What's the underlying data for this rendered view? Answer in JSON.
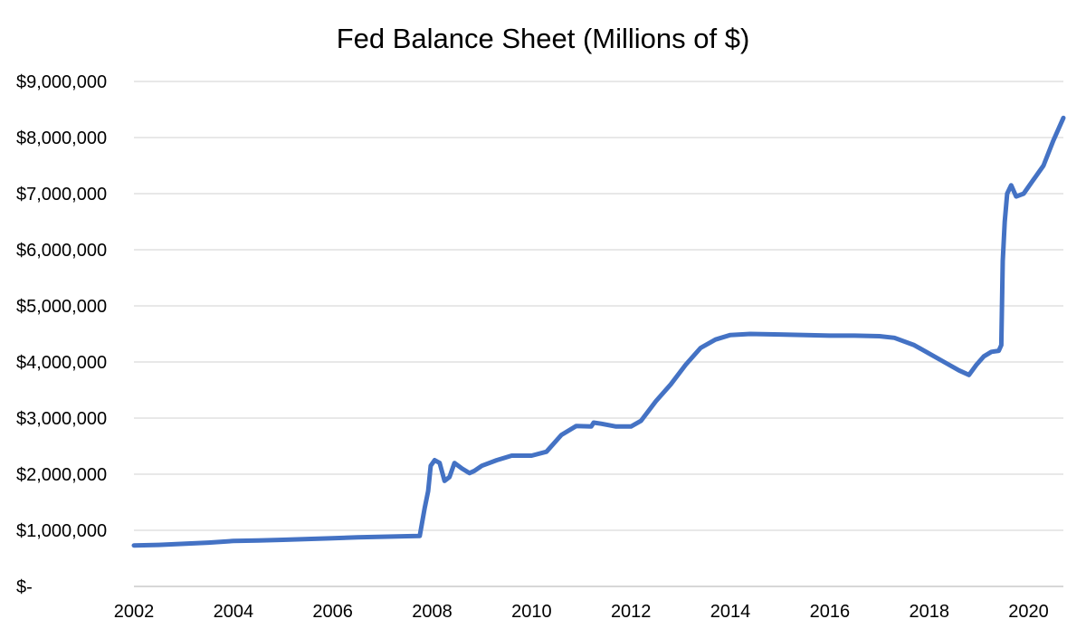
{
  "chart_data": {
    "type": "line",
    "title": "Fed Balance Sheet (Millions of $)",
    "xlabel": "",
    "ylabel": "",
    "xlim": [
      2002,
      2020.7
    ],
    "ylim": [
      0,
      9000000
    ],
    "grid": true,
    "legend": "none",
    "color": "#4472c4",
    "y_ticks": [
      {
        "value": 0,
        "label": "$-"
      },
      {
        "value": 1000000,
        "label": "$1,000,000"
      },
      {
        "value": 2000000,
        "label": "$2,000,000"
      },
      {
        "value": 3000000,
        "label": "$3,000,000"
      },
      {
        "value": 4000000,
        "label": "$4,000,000"
      },
      {
        "value": 5000000,
        "label": "$5,000,000"
      },
      {
        "value": 6000000,
        "label": "$6,000,000"
      },
      {
        "value": 7000000,
        "label": "$7,000,000"
      },
      {
        "value": 8000000,
        "label": "$8,000,000"
      },
      {
        "value": 9000000,
        "label": "$9,000,000"
      }
    ],
    "x_ticks": [
      {
        "value": 2002,
        "label": "2002"
      },
      {
        "value": 2004,
        "label": "2004"
      },
      {
        "value": 2006,
        "label": "2006"
      },
      {
        "value": 2008,
        "label": "2008"
      },
      {
        "value": 2010,
        "label": "2010"
      },
      {
        "value": 2012,
        "label": "2012"
      },
      {
        "value": 2014,
        "label": "2014"
      },
      {
        "value": 2016,
        "label": "2016"
      },
      {
        "value": 2018,
        "label": "2018"
      },
      {
        "value": 2020,
        "label": "2020"
      }
    ],
    "series": [
      {
        "points": [
          [
            2002.0,
            730000
          ],
          [
            2002.5,
            740000
          ],
          [
            2003.0,
            760000
          ],
          [
            2003.5,
            780000
          ],
          [
            2004.0,
            810000
          ],
          [
            2004.5,
            820000
          ],
          [
            2005.0,
            830000
          ],
          [
            2005.5,
            845000
          ],
          [
            2006.0,
            860000
          ],
          [
            2006.5,
            875000
          ],
          [
            2007.0,
            885000
          ],
          [
            2007.5,
            895000
          ],
          [
            2007.75,
            900000
          ],
          [
            2007.85,
            1400000
          ],
          [
            2007.92,
            1700000
          ],
          [
            2007.97,
            2150000
          ],
          [
            2008.05,
            2250000
          ],
          [
            2008.15,
            2200000
          ],
          [
            2008.25,
            1880000
          ],
          [
            2008.35,
            1950000
          ],
          [
            2008.45,
            2200000
          ],
          [
            2008.6,
            2100000
          ],
          [
            2008.75,
            2020000
          ],
          [
            2008.85,
            2060000
          ],
          [
            2009.0,
            2150000
          ],
          [
            2009.3,
            2250000
          ],
          [
            2009.6,
            2330000
          ],
          [
            2010.0,
            2330000
          ],
          [
            2010.3,
            2400000
          ],
          [
            2010.6,
            2700000
          ],
          [
            2010.9,
            2860000
          ],
          [
            2011.2,
            2850000
          ],
          [
            2011.25,
            2920000
          ],
          [
            2011.4,
            2900000
          ],
          [
            2011.7,
            2850000
          ],
          [
            2012.0,
            2850000
          ],
          [
            2012.2,
            2950000
          ],
          [
            2012.5,
            3300000
          ],
          [
            2012.8,
            3600000
          ],
          [
            2013.1,
            3950000
          ],
          [
            2013.4,
            4250000
          ],
          [
            2013.7,
            4400000
          ],
          [
            2014.0,
            4480000
          ],
          [
            2014.4,
            4500000
          ],
          [
            2015.0,
            4490000
          ],
          [
            2015.5,
            4480000
          ],
          [
            2016.0,
            4470000
          ],
          [
            2016.5,
            4470000
          ],
          [
            2017.0,
            4460000
          ],
          [
            2017.3,
            4430000
          ],
          [
            2017.7,
            4300000
          ],
          [
            2018.0,
            4150000
          ],
          [
            2018.3,
            4000000
          ],
          [
            2018.6,
            3850000
          ],
          [
            2018.8,
            3770000
          ],
          [
            2018.95,
            3950000
          ],
          [
            2019.1,
            4100000
          ],
          [
            2019.25,
            4180000
          ],
          [
            2019.4,
            4200000
          ],
          [
            2019.45,
            4300000
          ],
          [
            2019.48,
            5800000
          ],
          [
            2019.52,
            6500000
          ],
          [
            2019.57,
            7000000
          ],
          [
            2019.65,
            7150000
          ],
          [
            2019.75,
            6950000
          ],
          [
            2019.9,
            7000000
          ],
          [
            2020.1,
            7250000
          ],
          [
            2020.3,
            7500000
          ],
          [
            2020.5,
            7950000
          ],
          [
            2020.7,
            8350000
          ]
        ]
      }
    ]
  }
}
